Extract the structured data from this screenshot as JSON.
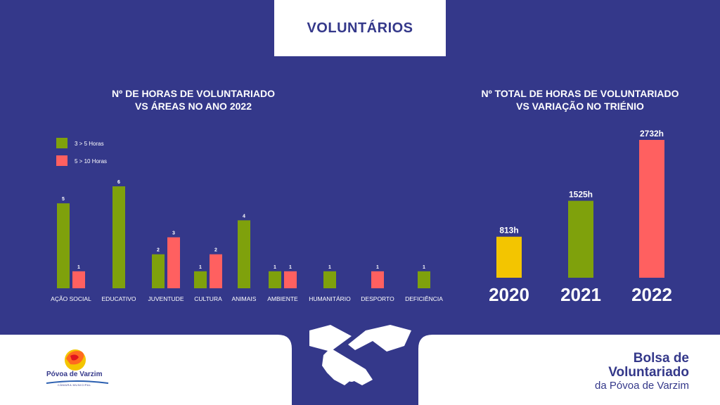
{
  "page_title": "VOLUNTÁRIOS",
  "colors": {
    "background": "#34388a",
    "green": "#7fa10c",
    "red": "#ff6060",
    "yellow": "#f3c500",
    "white": "#ffffff"
  },
  "chart_data": [
    {
      "type": "bar",
      "title": [
        "Nº DE HORAS DE VOLUNTARIADO",
        "VS ÁREAS NO ANO 2022"
      ],
      "categories": [
        "AÇÃO SOCIAL",
        "EDUCATIVO",
        "JUVENTUDE",
        "CULTURA",
        "ANIMAIS",
        "AMBIENTE",
        "HUMANITÁRIO",
        "DESPORTO",
        "DEFICIÊNCIA"
      ],
      "series": [
        {
          "name": "3 > 5 Horas",
          "color": "#7fa10c",
          "values": [
            5,
            6,
            2,
            1,
            4,
            1,
            1,
            null,
            1
          ]
        },
        {
          "name": "5 > 10 Horas",
          "color": "#ff6060",
          "values": [
            1,
            null,
            3,
            2,
            null,
            1,
            null,
            1,
            null
          ]
        }
      ],
      "ylim": [
        0,
        6
      ],
      "legend": "top-left",
      "grid": false
    },
    {
      "type": "bar",
      "title": [
        "Nº TOTAL DE HORAS DE VOLUNTARIADO",
        "VS VARIAÇÃO NO TRIÉNIO"
      ],
      "categories": [
        "2020",
        "2021",
        "2022"
      ],
      "values": [
        813,
        1525,
        2732
      ],
      "data_labels": [
        "813h",
        "1525h",
        "2732h"
      ],
      "colors": [
        "#f3c500",
        "#7fa10c",
        "#ff6060"
      ],
      "ylim": [
        0,
        2732
      ],
      "grid": false
    }
  ],
  "footer": {
    "brand_line1": "Bolsa de",
    "brand_line2": "Voluntariado",
    "brand_line3": "da Póvoa de Varzim",
    "logo_name": "Póvoa de Varzim",
    "logo_sub": "CÂMARA MUNICIPAL"
  }
}
